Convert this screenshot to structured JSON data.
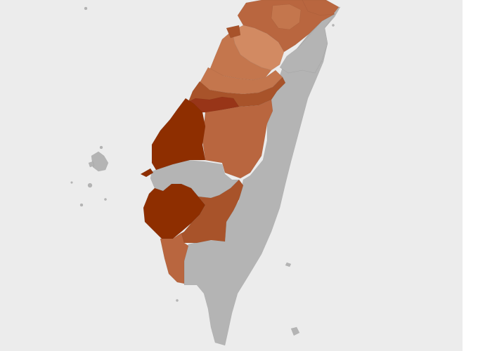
{
  "map": {
    "type": "choropleth",
    "colors": {
      "background": "#ececec",
      "no_data": "#b4b4b4",
      "level_1": "#d28a62",
      "level_2": "#c4764d",
      "level_3": "#b9663f",
      "level_4": "#a8532a",
      "level_5": "#983518",
      "level_6": "#8e2e00"
    },
    "regions": [
      {
        "id": "keelung",
        "level": "level_3"
      },
      {
        "id": "taipei",
        "level": "level_2"
      },
      {
        "id": "new-taipei",
        "level": "level_3"
      },
      {
        "id": "taoyuan",
        "level": "level_1"
      },
      {
        "id": "hsinchu-city",
        "level": "level_4"
      },
      {
        "id": "hsinchu-county",
        "level": "level_2"
      },
      {
        "id": "miaoli",
        "level": "level_2"
      },
      {
        "id": "taichung",
        "level": "level_4"
      },
      {
        "id": "changhua",
        "level": "level_5"
      },
      {
        "id": "nantou",
        "level": "level_3"
      },
      {
        "id": "yunlin",
        "level": "level_6"
      },
      {
        "id": "chiayi",
        "level": "no_data"
      },
      {
        "id": "tainan",
        "level": "level_6"
      },
      {
        "id": "kaohsiung",
        "level": "level_4"
      },
      {
        "id": "pingtung",
        "level": "level_3"
      },
      {
        "id": "yilan",
        "level": "no_data"
      },
      {
        "id": "hualien",
        "level": "no_data"
      },
      {
        "id": "taitung",
        "level": "no_data"
      },
      {
        "id": "penghu",
        "level": "no_data"
      },
      {
        "id": "small-islands",
        "level": "no_data"
      }
    ]
  }
}
